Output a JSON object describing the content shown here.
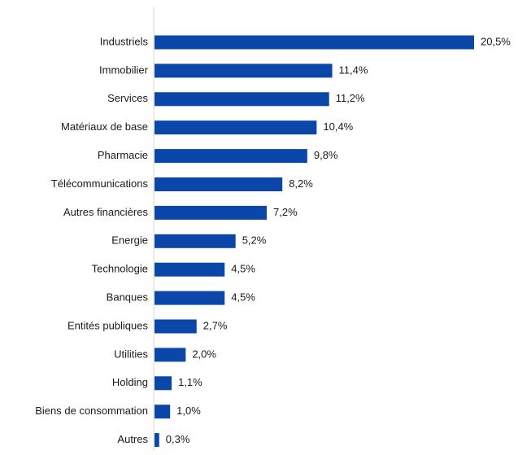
{
  "chart_data": {
    "type": "bar",
    "orientation": "horizontal",
    "categories": [
      "Industriels",
      "Immobilier",
      "Services",
      "Matériaux de base",
      "Pharmacie",
      "Télécommunications",
      "Autres financières",
      "Energie",
      "Technologie",
      "Banques",
      "Entités publiques",
      "Utilities",
      "Holding",
      "Biens de consommation",
      "Autres"
    ],
    "values": [
      20.5,
      11.4,
      11.2,
      10.4,
      9.8,
      8.2,
      7.2,
      5.2,
      4.5,
      4.5,
      2.7,
      2.0,
      1.1,
      1.0,
      0.3
    ],
    "value_labels": [
      "20,5%",
      "11,4%",
      "11,2%",
      "10,4%",
      "9,8%",
      "8,2%",
      "7,2%",
      "5,2%",
      "4,5%",
      "4,5%",
      "2,7%",
      "2,0%",
      "1,1%",
      "1,0%",
      "0,3%"
    ],
    "xlim": [
      0,
      20.5
    ],
    "grid": false,
    "legend": "none",
    "bar_color": "#0a47a9",
    "axis_color": "#d9d9d9"
  }
}
